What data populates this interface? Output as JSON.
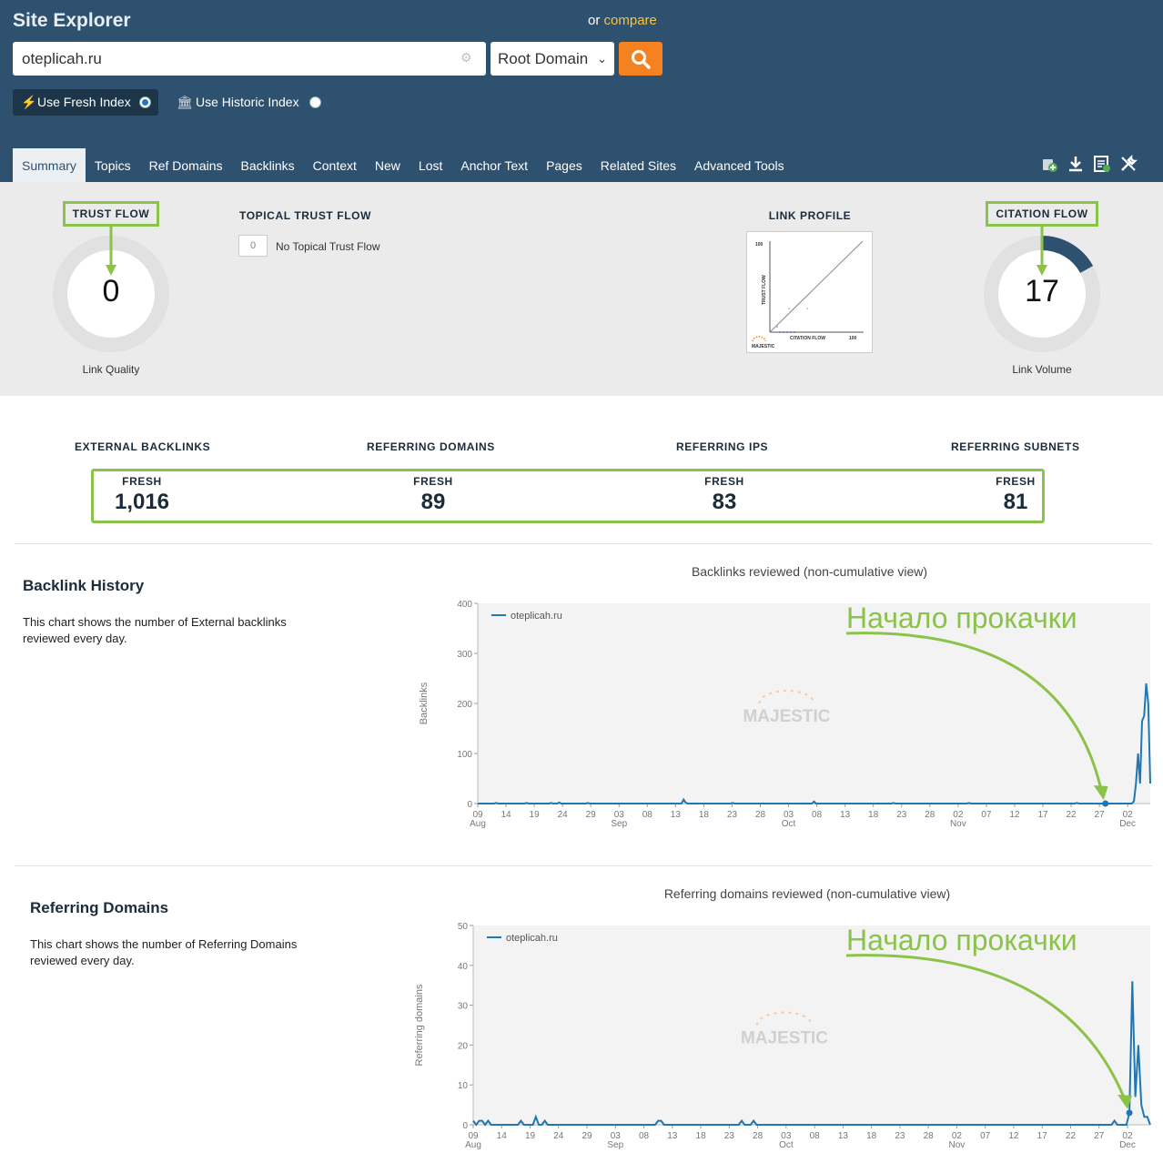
{
  "app": {
    "title": "Site Explorer",
    "compare_prefix": "or",
    "compare_link": "compare"
  },
  "search": {
    "value": "oteplicah.ru",
    "scope": "Root Domain"
  },
  "index": {
    "fresh_label": "Use Fresh Index",
    "historic_label": "Use Historic Index",
    "selected": "fresh"
  },
  "tabs": [
    "Summary",
    "Topics",
    "Ref Domains",
    "Backlinks",
    "Context",
    "New",
    "Lost",
    "Anchor Text",
    "Pages",
    "Related Sites",
    "Advanced Tools"
  ],
  "toolbar_icons": [
    "add-to-bucket-icon",
    "download-icon",
    "report-icon",
    "tools-icon"
  ],
  "trust_flow": {
    "title": "TRUST FLOW",
    "value": "0",
    "caption": "Link Quality",
    "fraction": 0.0
  },
  "topical_trust_flow": {
    "title": "TOPICAL TRUST FLOW",
    "score": "0",
    "text": "No Topical Trust Flow"
  },
  "link_profile": {
    "title": "LINK PROFILE",
    "y_label": "TRUST FLOW",
    "x_label": "CITATION FLOW",
    "max_y": "100",
    "max_x": "100",
    "logo": "MAJESTIC"
  },
  "citation_flow": {
    "title": "CITATION FLOW",
    "value": "17",
    "caption": "Link Volume",
    "fraction": 0.17
  },
  "stats": [
    {
      "label": "EXTERNAL BACKLINKS",
      "sub": "FRESH",
      "value": "1,016"
    },
    {
      "label": "REFERRING DOMAINS",
      "sub": "FRESH",
      "value": "89"
    },
    {
      "label": "REFERRING IPS",
      "sub": "FRESH",
      "value": "83"
    },
    {
      "label": "REFERRING SUBNETS",
      "sub": "FRESH",
      "value": "81"
    }
  ],
  "backlink_history": {
    "title": "Backlink History",
    "description": "This chart shows the number of External backlinks reviewed every day."
  },
  "referring_domains_section": {
    "title": "Referring Domains",
    "description": "This chart shows the number of Referring Domains reviewed every day."
  },
  "annotation": "Начало прокачки",
  "chart_data": [
    {
      "type": "line",
      "title": "Backlinks reviewed (non-cumulative view)",
      "ylabel": "Backlinks",
      "ylim": [
        0,
        400
      ],
      "yticks": [
        0,
        100,
        200,
        300,
        400
      ],
      "xticks": [
        "09 Aug",
        "14",
        "19",
        "24",
        "29",
        "03 Sep",
        "08",
        "13",
        "18",
        "23",
        "28",
        "03 Oct",
        "08",
        "13",
        "18",
        "23",
        "28",
        "02 Nov",
        "07",
        "12",
        "17",
        "22",
        "27",
        "02 Dec"
      ],
      "series": [
        {
          "name": "oteplicah.ru",
          "color": "#1f77b4",
          "values": [
            0,
            0,
            0,
            0,
            0,
            0,
            0,
            0,
            0,
            1,
            0,
            0,
            0,
            0,
            0,
            0,
            0,
            0,
            0,
            0,
            0,
            0,
            0,
            0,
            1,
            0,
            0,
            0,
            0,
            0,
            0,
            0,
            0,
            0,
            0,
            0,
            1,
            0,
            0,
            0,
            2,
            0,
            0,
            0,
            0,
            0,
            0,
            0,
            0,
            0,
            0,
            0,
            0,
            0,
            1,
            0,
            0,
            0,
            0,
            0,
            0,
            0,
            0,
            0,
            0,
            0,
            0,
            0,
            0,
            0,
            0,
            0,
            0,
            0,
            0,
            0,
            0,
            0,
            0,
            0,
            0,
            0,
            0,
            0,
            0,
            0,
            0,
            0,
            0,
            0,
            0,
            0,
            0,
            0,
            0,
            0,
            0,
            0,
            0,
            0,
            0,
            8,
            2,
            0,
            0,
            0,
            0,
            0,
            0,
            0,
            0,
            0,
            0,
            0,
            0,
            0,
            0,
            0,
            0,
            0,
            0,
            0,
            0,
            0,
            0,
            1,
            0,
            0,
            0,
            0,
            0,
            0,
            0,
            0,
            0,
            0,
            0,
            0,
            0,
            0,
            0,
            0,
            0,
            0,
            0,
            0,
            0,
            0,
            0,
            0,
            0,
            0,
            0,
            0,
            0,
            0,
            0,
            0,
            0,
            0,
            0,
            0,
            0,
            0,
            0,
            4,
            0,
            0,
            0,
            0,
            0,
            0,
            0,
            0,
            0,
            0,
            0,
            0,
            0,
            0,
            0,
            0,
            0,
            0,
            0,
            0,
            0,
            0,
            0,
            0,
            0,
            0,
            0,
            0,
            0,
            0,
            0,
            0,
            0,
            0,
            0,
            0,
            0,
            0,
            1,
            0,
            0,
            0,
            0,
            0,
            0,
            0,
            0,
            0,
            0,
            0,
            0,
            0,
            0,
            0,
            0,
            0,
            0,
            0,
            0,
            0,
            0,
            0,
            0,
            0,
            0,
            0,
            0,
            0,
            0,
            0,
            0,
            0,
            0,
            0,
            0,
            1,
            0,
            0,
            0,
            0,
            0,
            0,
            0,
            0,
            0,
            0,
            0,
            0,
            0,
            0,
            0,
            0,
            0,
            0,
            0,
            0,
            0,
            0,
            0,
            0,
            0,
            0,
            0,
            0,
            0,
            0,
            0,
            0,
            0,
            0,
            0,
            0,
            0,
            0,
            0,
            0,
            0,
            0,
            0,
            0,
            0,
            0,
            0,
            0,
            0,
            0,
            0,
            0,
            1,
            0,
            0,
            0,
            0,
            0,
            0,
            0,
            0,
            0,
            0,
            0,
            0,
            0,
            0,
            0,
            0,
            0,
            0,
            0,
            0,
            0,
            0,
            0,
            0,
            0,
            0,
            0,
            5,
            40,
            100,
            40,
            165,
            175,
            240,
            200,
            40
          ]
        }
      ],
      "annotated_point_index": 308
    },
    {
      "type": "line",
      "title": "Referring domains reviewed (non-cumulative view)",
      "ylabel": "Referring domains",
      "ylim": [
        0,
        50
      ],
      "yticks": [
        0,
        10,
        20,
        30,
        40,
        50
      ],
      "xticks": [
        "09 Aug",
        "14",
        "19",
        "24",
        "29",
        "03 Sep",
        "08",
        "13",
        "18",
        "23",
        "28",
        "03 Oct",
        "08",
        "13",
        "18",
        "23",
        "28",
        "02 Nov",
        "07",
        "12",
        "17",
        "22",
        "27",
        "02 Dec"
      ],
      "series": [
        {
          "name": "oteplicah.ru",
          "color": "#1f77b4",
          "values": [
            1,
            0,
            1,
            1,
            0,
            1,
            0,
            0,
            0,
            0,
            0,
            0,
            0,
            0,
            0,
            0,
            1,
            0,
            0,
            0,
            0,
            2,
            0,
            0,
            1,
            0,
            0,
            0,
            0,
            0,
            0,
            0,
            0,
            0,
            0,
            0,
            0,
            0,
            0,
            0,
            0,
            0,
            0,
            0,
            0,
            0,
            0,
            0,
            0,
            0,
            0,
            0,
            0,
            0,
            0,
            0,
            0,
            0,
            0,
            0,
            0,
            0,
            1,
            1,
            0,
            0,
            0,
            0,
            0,
            0,
            0,
            0,
            0,
            0,
            0,
            0,
            0,
            0,
            0,
            0,
            0,
            0,
            0,
            0,
            0,
            0,
            0,
            0,
            0,
            0,
            1,
            0,
            0,
            0,
            1,
            0,
            0,
            0,
            0,
            0,
            0,
            0,
            0,
            0,
            0,
            0,
            0,
            0,
            0,
            0,
            0,
            0,
            0,
            0,
            0,
            0,
            0,
            0,
            0,
            0,
            0,
            0,
            0,
            0,
            0,
            0,
            0,
            0,
            0,
            0,
            0,
            0,
            0,
            0,
            0,
            0,
            0,
            0,
            0,
            0,
            0,
            0,
            0,
            0,
            0,
            0,
            0,
            0,
            0,
            0,
            0,
            0,
            0,
            0,
            0,
            0,
            0,
            0,
            0,
            0,
            0,
            0,
            0,
            0,
            0,
            0,
            0,
            0,
            0,
            0,
            0,
            0,
            0,
            0,
            0,
            0,
            0,
            0,
            0,
            0,
            0,
            0,
            0,
            0,
            0,
            0,
            0,
            0,
            0,
            0,
            0,
            0,
            0,
            0,
            0,
            0,
            0,
            0,
            0,
            0,
            0,
            0,
            0,
            0,
            0,
            0,
            0,
            0,
            0,
            0,
            0,
            0,
            0,
            0,
            0,
            1,
            0,
            0,
            0,
            0,
            3,
            36,
            7,
            20,
            5,
            2,
            2,
            0
          ]
        }
      ],
      "annotated_point_index": 220
    }
  ]
}
